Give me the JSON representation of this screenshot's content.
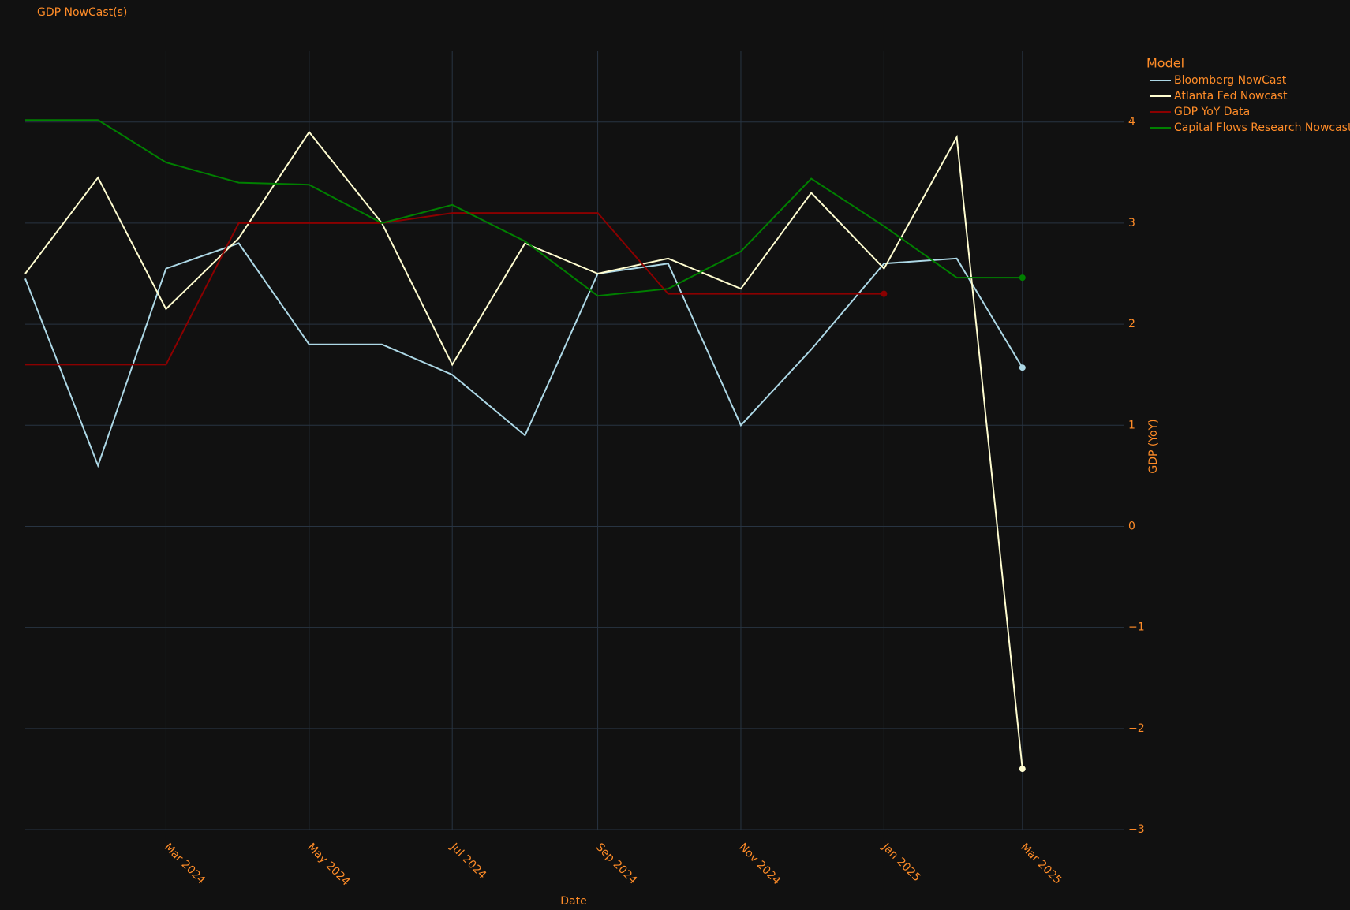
{
  "chart_data": {
    "type": "line",
    "title": "GDP NowCast(s)",
    "x_label": "Date",
    "y_label": "GDP (YoY)",
    "legend_title": "Model",
    "x": [
      "2024-01",
      "2024-02",
      "2024-03",
      "2024-04",
      "2024-05",
      "2024-06",
      "2024-07",
      "2024-08",
      "2024-09",
      "2024-10",
      "2024-11",
      "2024-12",
      "2025-01",
      "2025-02",
      "2025-03"
    ],
    "series": [
      {
        "name": "Bloomberg NowCast",
        "color": "#add8e6",
        "values": [
          2.45,
          0.6,
          2.55,
          2.8,
          1.8,
          1.8,
          1.5,
          0.9,
          2.5,
          2.6,
          1.0,
          1.75,
          2.6,
          2.65,
          1.57
        ]
      },
      {
        "name": "Atlanta Fed Nowcast",
        "color": "#fffdd0",
        "values": [
          2.5,
          3.45,
          2.15,
          2.85,
          3.9,
          3.0,
          1.6,
          2.8,
          2.5,
          2.65,
          2.35,
          3.3,
          2.55,
          3.85,
          -2.4
        ]
      },
      {
        "name": "GDP YoY Data",
        "color": "#8b0000",
        "values": [
          1.6,
          1.6,
          1.6,
          3.0,
          3.0,
          3.0,
          3.1,
          3.1,
          3.1,
          2.3,
          2.3,
          2.3,
          2.3,
          null,
          null
        ]
      },
      {
        "name": "Capital Flows Research Nowcast",
        "color": "#008000",
        "values": [
          4.02,
          4.02,
          3.6,
          3.4,
          3.38,
          3.0,
          3.18,
          2.82,
          2.28,
          2.35,
          2.72,
          3.44,
          2.97,
          2.46,
          2.46
        ]
      }
    ],
    "xlim": [
      "2024-01",
      "2025-04"
    ],
    "xticks": [
      {
        "value": "2024-03",
        "label": "Mar 2024"
      },
      {
        "value": "2024-05",
        "label": "May 2024"
      },
      {
        "value": "2024-07",
        "label": "Jul 2024"
      },
      {
        "value": "2024-09",
        "label": "Sep 2024"
      },
      {
        "value": "2024-11",
        "label": "Nov 2024"
      },
      {
        "value": "2025-01",
        "label": "Jan 2025"
      },
      {
        "value": "2025-03",
        "label": "Mar 2025"
      }
    ],
    "ylim": [
      -3,
      4.7
    ],
    "yticks": [
      {
        "value": -3,
        "label": "−3"
      },
      {
        "value": -2,
        "label": "−2"
      },
      {
        "value": -1,
        "label": "−1"
      },
      0,
      1,
      2,
      3,
      4
    ],
    "grid": true,
    "end_markers": true,
    "legend_position": "outside-right"
  }
}
